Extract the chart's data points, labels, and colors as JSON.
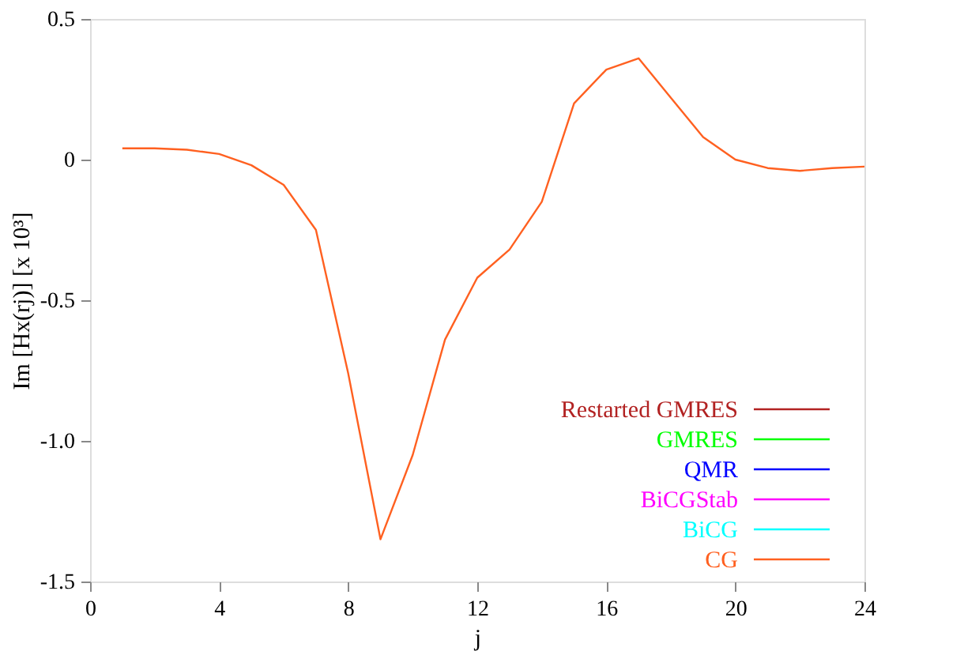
{
  "chart_data": {
    "type": "line",
    "xlabel": "j",
    "ylabel": "Im [Hx(rj)] [x 10³]",
    "x": [
      1,
      2,
      3,
      4,
      5,
      6,
      7,
      8,
      9,
      10,
      11,
      12,
      13,
      14,
      15,
      16,
      17,
      18,
      19,
      20,
      21,
      22,
      23,
      24
    ],
    "series": [
      {
        "name": "Restarted GMRES",
        "color": "#b22222",
        "values": [
          null,
          null,
          null,
          null,
          null,
          null,
          null,
          null,
          null,
          null,
          null,
          null,
          null,
          null,
          null,
          null,
          null,
          null,
          null,
          null,
          null,
          null,
          null,
          null
        ]
      },
      {
        "name": "GMRES",
        "color": "#00ff00",
        "values": [
          null,
          null,
          null,
          null,
          null,
          null,
          null,
          null,
          null,
          null,
          null,
          null,
          null,
          null,
          null,
          null,
          null,
          null,
          null,
          null,
          null,
          null,
          null,
          null
        ]
      },
      {
        "name": "QMR",
        "color": "#0000ff",
        "values": [
          null,
          null,
          null,
          null,
          null,
          null,
          null,
          null,
          null,
          null,
          null,
          null,
          null,
          null,
          null,
          null,
          null,
          null,
          null,
          null,
          null,
          null,
          null,
          null
        ]
      },
      {
        "name": "BiCGStab",
        "color": "#ff00ff",
        "values": [
          null,
          null,
          null,
          null,
          null,
          null,
          null,
          null,
          null,
          null,
          null,
          null,
          null,
          null,
          null,
          null,
          null,
          null,
          null,
          null,
          null,
          null,
          null,
          null
        ]
      },
      {
        "name": "BiCG",
        "color": "#00ffff",
        "values": [
          null,
          null,
          null,
          null,
          null,
          null,
          null,
          null,
          null,
          null,
          null,
          null,
          null,
          null,
          null,
          null,
          null,
          null,
          null,
          null,
          null,
          null,
          null,
          null
        ]
      },
      {
        "name": "CG",
        "color": "#ff6020",
        "values": [
          0.04,
          0.04,
          0.035,
          0.02,
          -0.02,
          -0.09,
          -0.25,
          -0.76,
          -1.35,
          -1.05,
          -0.64,
          -0.42,
          -0.32,
          -0.15,
          0.2,
          0.32,
          0.36,
          0.22,
          0.08,
          0.0,
          -0.03,
          -0.04,
          -0.03,
          -0.025
        ]
      }
    ],
    "xlim": [
      0,
      24
    ],
    "xticks": [
      0,
      4,
      8,
      12,
      16,
      20,
      24
    ],
    "ylim": [
      -1.5,
      0.5
    ],
    "yticks": [
      0.5,
      0,
      -0.5,
      {
        "value": -1.0,
        "label": "-1.0"
      },
      -1.5
    ],
    "grid": false,
    "legend": "bottom right",
    "marker": "none",
    "line_style": "solid"
  }
}
